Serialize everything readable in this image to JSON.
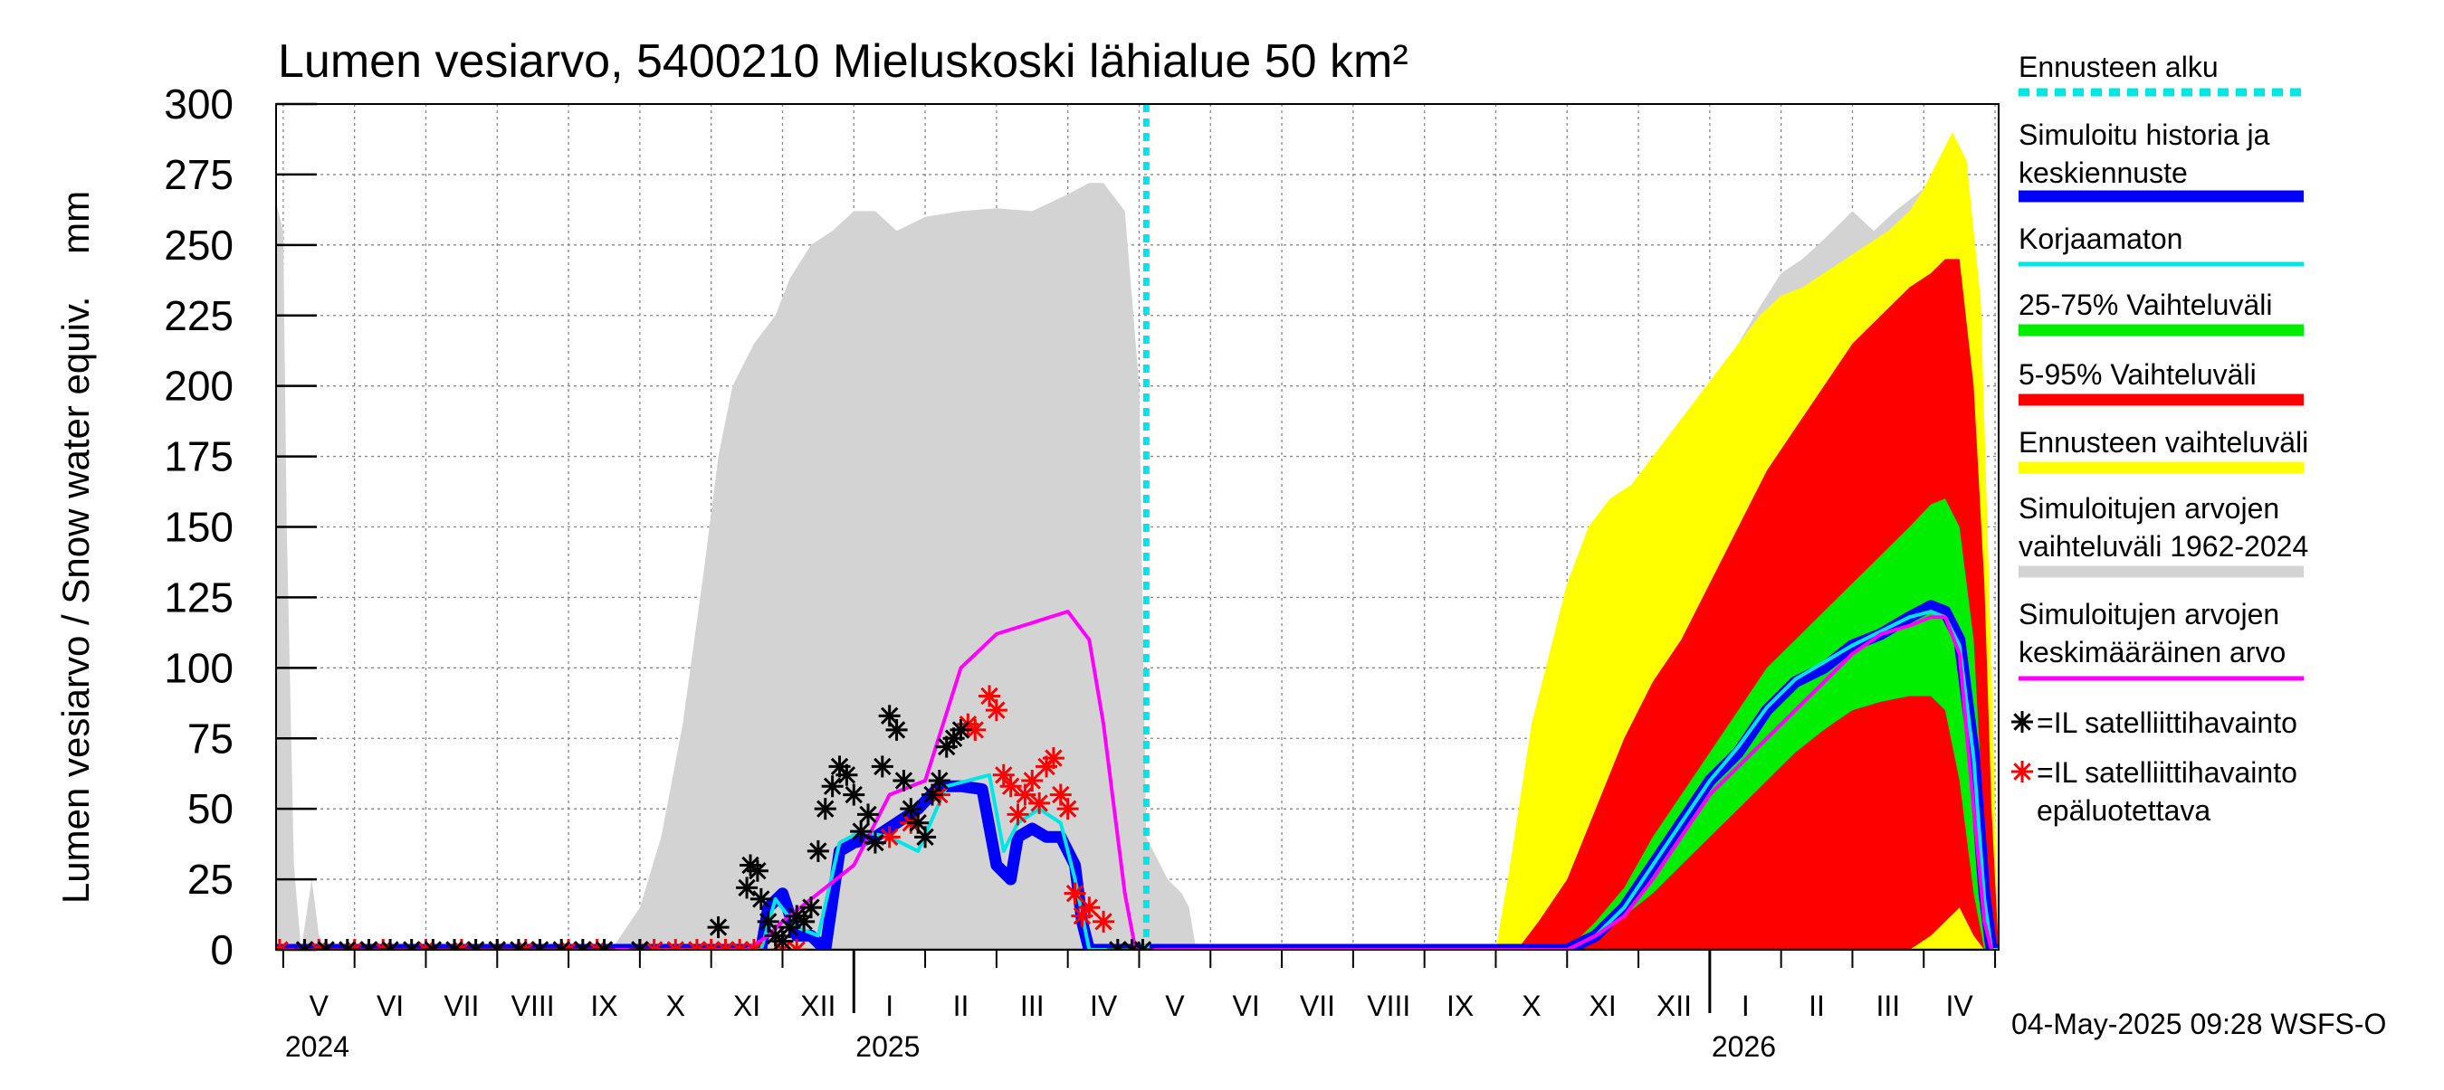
{
  "title": "Lumen vesiarvo, 5400210 Mieluskoski lähialue 50 km²",
  "ylabel": "Lumen vesiarvo / Snow water equiv.    mm",
  "footer": "04-May-2025 09:28 WSFS-O",
  "colors": {
    "forecast_start": "#00e5e5",
    "central": "#0000ff",
    "uncorrected": "#00e5e5",
    "p25_75": "#00ee00",
    "p5_95": "#ff0000",
    "forecast_range": "#ffff00",
    "hist_range": "#d3d3d3",
    "hist_mean": "#ff00ff",
    "sat_obs": "#000000",
    "sat_obs_unreliable": "#ff0000"
  },
  "legend": [
    {
      "label": "Ennusteen alku",
      "key": "forecast_start"
    },
    {
      "label": "Simuloitu historia ja keskiennuste",
      "key": "central"
    },
    {
      "label": "Korjaamaton",
      "key": "uncorrected"
    },
    {
      "label": "25-75% Vaihteluväli",
      "key": "p25_75"
    },
    {
      "label": "5-95% Vaihteluväli",
      "key": "p5_95"
    },
    {
      "label": "Ennusteen vaihteluväli",
      "key": "forecast_range"
    },
    {
      "label": "Simuloitujen arvojen vaihteluväli 1962-2024",
      "key": "hist_range"
    },
    {
      "label": "Simuloitujen arvojen keskimääräinen arvo",
      "key": "hist_mean"
    },
    {
      "label": "=IL satelliittihavainto",
      "key": "sat_obs"
    },
    {
      "label": "=IL satelliittihavainto epäluotettava",
      "key": "sat_obs_unreliable"
    }
  ],
  "chart_data": {
    "type": "area",
    "title": "Lumen vesiarvo, 5400210 Mieluskoski lähialue 50 km²",
    "ylabel": "Lumen vesiarvo / Snow water equiv. mm",
    "xlabel": "",
    "x_unit": "months since 2024-04-01",
    "xlim": [
      0.9,
      25.05
    ],
    "ylim": [
      0,
      300
    ],
    "yticks": [
      0,
      25,
      50,
      75,
      100,
      125,
      150,
      175,
      200,
      225,
      250,
      275,
      300
    ],
    "grid": true,
    "legend_position": "right",
    "forecast_start": 13.1,
    "month_labels": [
      {
        "label": "V",
        "x": 1.5
      },
      {
        "label": "VI",
        "x": 2.5
      },
      {
        "label": "VII",
        "x": 3.5
      },
      {
        "label": "VIII",
        "x": 4.5
      },
      {
        "label": "IX",
        "x": 5.5
      },
      {
        "label": "X",
        "x": 6.5
      },
      {
        "label": "XI",
        "x": 7.5
      },
      {
        "label": "XII",
        "x": 8.5
      },
      {
        "label": "I",
        "x": 9.5
      },
      {
        "label": "II",
        "x": 10.5
      },
      {
        "label": "III",
        "x": 11.5
      },
      {
        "label": "IV",
        "x": 12.5
      },
      {
        "label": "V",
        "x": 13.5
      },
      {
        "label": "VI",
        "x": 14.5
      },
      {
        "label": "VII",
        "x": 15.5
      },
      {
        "label": "VIII",
        "x": 16.5
      },
      {
        "label": "IX",
        "x": 17.5
      },
      {
        "label": "X",
        "x": 18.5
      },
      {
        "label": "XI",
        "x": 19.5
      },
      {
        "label": "XII",
        "x": 20.5
      },
      {
        "label": "I",
        "x": 21.5
      },
      {
        "label": "II",
        "x": 22.5
      },
      {
        "label": "III",
        "x": 23.5
      },
      {
        "label": "IV",
        "x": 24.5
      }
    ],
    "year_labels": [
      {
        "label": "2024",
        "x": 1.0
      },
      {
        "label": "2025",
        "x": 9.0
      },
      {
        "label": "2026",
        "x": 21.0
      }
    ],
    "year_ticks": [
      9.0,
      21.0
    ],
    "hist_range": {
      "x": [
        0.9,
        1.0,
        1.05,
        1.15,
        1.25,
        1.4,
        1.5,
        1.6,
        5.6,
        6.0,
        6.3,
        6.6,
        6.9,
        7.1,
        7.3,
        7.6,
        7.9,
        8.1,
        8.4,
        8.7,
        9.0,
        9.3,
        9.6,
        10.0,
        10.5,
        11.0,
        11.5,
        12.0,
        12.3,
        12.5,
        12.8,
        13.0,
        13.1,
        13.4,
        13.6,
        13.7,
        13.8,
        18.5,
        19.0,
        19.4,
        19.7,
        20.0,
        20.3,
        20.6,
        21.0,
        21.4,
        21.7,
        22.0,
        22.3,
        22.6,
        23.0,
        23.3,
        23.6,
        24.0,
        24.2,
        24.4,
        24.6,
        24.8,
        24.95,
        25.05
      ],
      "low": [
        0,
        0,
        0,
        0,
        0,
        0,
        0,
        0,
        0,
        0,
        0,
        0,
        0,
        0,
        0,
        0,
        0,
        0,
        0,
        0,
        0,
        0,
        0,
        0,
        0,
        0,
        0,
        0,
        0,
        0,
        0,
        0,
        0,
        0,
        0,
        0,
        0,
        0,
        0,
        0,
        0,
        0,
        0,
        0,
        0,
        0,
        0,
        0,
        0,
        0,
        0,
        5,
        10,
        18,
        6,
        0,
        0,
        0,
        0,
        0
      ],
      "high": [
        265,
        255,
        150,
        30,
        0,
        25,
        5,
        0,
        0,
        15,
        40,
        80,
        135,
        175,
        200,
        215,
        225,
        238,
        250,
        255,
        262,
        262,
        255,
        260,
        262,
        263,
        262,
        268,
        272,
        272,
        262,
        200,
        40,
        25,
        20,
        15,
        0,
        0,
        30,
        50,
        90,
        130,
        150,
        160,
        185,
        215,
        228,
        240,
        245,
        252,
        262,
        255,
        262,
        270,
        275,
        272,
        250,
        150,
        20,
        0
      ]
    },
    "forecast_range": {
      "x": [
        18.0,
        18.2,
        18.5,
        18.8,
        19.0,
        19.3,
        19.6,
        19.9,
        20.2,
        20.5,
        20.8,
        21.1,
        21.4,
        21.7,
        22.0,
        22.3,
        22.6,
        22.9,
        23.2,
        23.5,
        23.8,
        24.0,
        24.2,
        24.4,
        24.6,
        24.8,
        24.95,
        25.05
      ],
      "low": [
        0,
        0,
        0,
        0,
        0,
        0,
        0,
        0,
        0,
        0,
        0,
        0,
        0,
        0,
        0,
        0,
        0,
        0,
        0,
        0,
        0,
        0,
        0,
        0,
        0,
        0,
        0,
        0
      ],
      "high": [
        0,
        30,
        80,
        110,
        130,
        150,
        160,
        165,
        175,
        185,
        195,
        205,
        215,
        225,
        232,
        235,
        240,
        245,
        250,
        255,
        262,
        270,
        280,
        290,
        280,
        230,
        100,
        0
      ]
    },
    "p5_95": {
      "x": [
        18.3,
        18.6,
        19.0,
        19.4,
        19.8,
        20.2,
        20.6,
        21.0,
        21.4,
        21.8,
        22.2,
        22.6,
        23.0,
        23.4,
        23.8,
        24.1,
        24.3,
        24.5,
        24.7,
        24.85,
        24.95,
        25.05
      ],
      "low": [
        0,
        0,
        0,
        0,
        0,
        0,
        0,
        0,
        0,
        0,
        0,
        0,
        0,
        0,
        0,
        5,
        10,
        15,
        5,
        0,
        0,
        0
      ],
      "high": [
        0,
        10,
        25,
        50,
        75,
        95,
        110,
        130,
        150,
        170,
        185,
        200,
        215,
        225,
        235,
        240,
        245,
        245,
        200,
        130,
        50,
        0
      ]
    },
    "p25_75": {
      "x": [
        19.0,
        19.4,
        19.8,
        20.2,
        20.6,
        21.0,
        21.4,
        21.8,
        22.2,
        22.6,
        23.0,
        23.4,
        23.8,
        24.1,
        24.3,
        24.5,
        24.7,
        24.85,
        25.0
      ],
      "low": [
        0,
        5,
        12,
        20,
        30,
        40,
        50,
        60,
        70,
        78,
        85,
        88,
        90,
        90,
        85,
        60,
        20,
        0,
        0
      ],
      "high": [
        0,
        10,
        22,
        40,
        55,
        70,
        85,
        100,
        110,
        120,
        130,
        140,
        150,
        158,
        160,
        150,
        110,
        40,
        0
      ]
    },
    "hist_mean": {
      "x": [
        0.9,
        7.5,
        7.8,
        8.0,
        8.5,
        9.0,
        9.5,
        10.0,
        10.5,
        11.0,
        11.5,
        12.0,
        12.3,
        12.5,
        12.8,
        12.95,
        13.05,
        19.0,
        19.4,
        19.8,
        20.2,
        20.6,
        21.0,
        21.4,
        21.8,
        22.2,
        22.6,
        23.0,
        23.4,
        23.8,
        24.1,
        24.3,
        24.5,
        24.7,
        24.85,
        24.95
      ],
      "y": [
        0,
        0,
        5,
        10,
        20,
        30,
        55,
        60,
        100,
        112,
        116,
        120,
        110,
        80,
        20,
        0,
        0,
        0,
        5,
        12,
        25,
        40,
        55,
        65,
        75,
        85,
        95,
        105,
        112,
        115,
        118,
        118,
        105,
        50,
        10,
        0
      ]
    },
    "central": {
      "x": [
        0.9,
        7.7,
        7.8,
        8.0,
        8.2,
        8.4,
        8.6,
        8.8,
        9.0,
        9.3,
        9.6,
        9.9,
        10.2,
        10.5,
        10.8,
        11.0,
        11.2,
        11.3,
        11.5,
        11.7,
        11.9,
        12.1,
        12.2,
        12.3,
        12.5,
        13.1,
        19.0,
        19.4,
        19.8,
        20.2,
        20.6,
        21.0,
        21.4,
        21.8,
        22.2,
        22.6,
        23.0,
        23.4,
        23.8,
        24.1,
        24.3,
        24.5,
        24.7,
        24.85,
        24.95,
        25.05
      ],
      "y": [
        0,
        0,
        15,
        20,
        5,
        5,
        0,
        35,
        38,
        40,
        45,
        50,
        58,
        58,
        57,
        30,
        25,
        40,
        43,
        40,
        40,
        30,
        10,
        0,
        0,
        0,
        0,
        5,
        15,
        30,
        45,
        60,
        70,
        85,
        95,
        100,
        108,
        112,
        118,
        122,
        120,
        110,
        70,
        20,
        0,
        0
      ]
    },
    "uncorrected": {
      "x": [
        0.9,
        7.7,
        7.9,
        8.2,
        8.5,
        8.8,
        9.1,
        9.5,
        9.9,
        10.3,
        10.6,
        10.9,
        11.1,
        11.3,
        11.6,
        11.9,
        12.1,
        12.3,
        12.5,
        13.1,
        19.0,
        19.4,
        19.8,
        20.2,
        20.6,
        21.0,
        21.4,
        21.8,
        22.2,
        22.6,
        23.0,
        23.4,
        23.8,
        24.1,
        24.3,
        24.5,
        24.7,
        24.85,
        24.95,
        25.05
      ],
      "y": [
        0,
        0,
        18,
        8,
        5,
        38,
        42,
        40,
        35,
        58,
        60,
        62,
        35,
        45,
        50,
        45,
        25,
        0,
        0,
        0,
        0,
        5,
        15,
        30,
        45,
        60,
        72,
        86,
        96,
        102,
        108,
        113,
        118,
        120,
        118,
        108,
        68,
        18,
        0,
        0
      ]
    },
    "sat_obs": {
      "x": [
        1.3,
        1.6,
        1.9,
        2.2,
        2.5,
        2.8,
        3.1,
        3.4,
        3.7,
        4.0,
        4.3,
        4.6,
        4.9,
        5.2,
        5.5,
        6.0,
        7.1,
        7.5,
        7.55,
        7.65,
        7.7,
        7.8,
        7.9,
        8.0,
        8.1,
        8.2,
        8.3,
        8.4,
        8.5,
        8.6,
        8.7,
        8.8,
        8.9,
        9.0,
        9.1,
        9.2,
        9.3,
        9.4,
        9.5,
        9.6,
        9.7,
        9.8,
        9.9,
        10.0,
        10.1,
        10.2,
        10.3,
        10.4,
        10.5,
        12.7,
        12.9,
        13.05
      ],
      "y": [
        0,
        0,
        0,
        0,
        0,
        0,
        0,
        0,
        0,
        0,
        0,
        0,
        0,
        0,
        0,
        0,
        8,
        22,
        30,
        28,
        18,
        10,
        5,
        3,
        8,
        12,
        10,
        15,
        35,
        50,
        58,
        65,
        62,
        55,
        42,
        48,
        38,
        65,
        83,
        78,
        60,
        50,
        45,
        40,
        55,
        60,
        72,
        75,
        78,
        0,
        0,
        0
      ]
    },
    "sat_obs_unreliable": {
      "x": [
        0.95,
        1.5,
        2.0,
        2.4,
        3.0,
        3.5,
        4.0,
        4.4,
        5.0,
        5.4,
        6.0,
        6.2,
        6.5,
        6.8,
        7.0,
        7.2,
        7.4,
        7.6,
        8.0,
        8.2,
        9.5,
        9.8,
        10.2,
        10.6,
        10.7,
        10.9,
        11.0,
        11.1,
        11.2,
        11.3,
        11.4,
        11.5,
        11.6,
        11.7,
        11.8,
        11.9,
        12.0,
        12.1,
        12.2,
        12.3,
        12.5
      ],
      "y": [
        0,
        0,
        0,
        0,
        0,
        0,
        0,
        0,
        0,
        0,
        0,
        0,
        0,
        0,
        0,
        0,
        0,
        0,
        0,
        0,
        40,
        45,
        55,
        80,
        78,
        90,
        85,
        62,
        58,
        48,
        55,
        60,
        52,
        65,
        68,
        55,
        50,
        20,
        12,
        15,
        10
      ]
    }
  }
}
